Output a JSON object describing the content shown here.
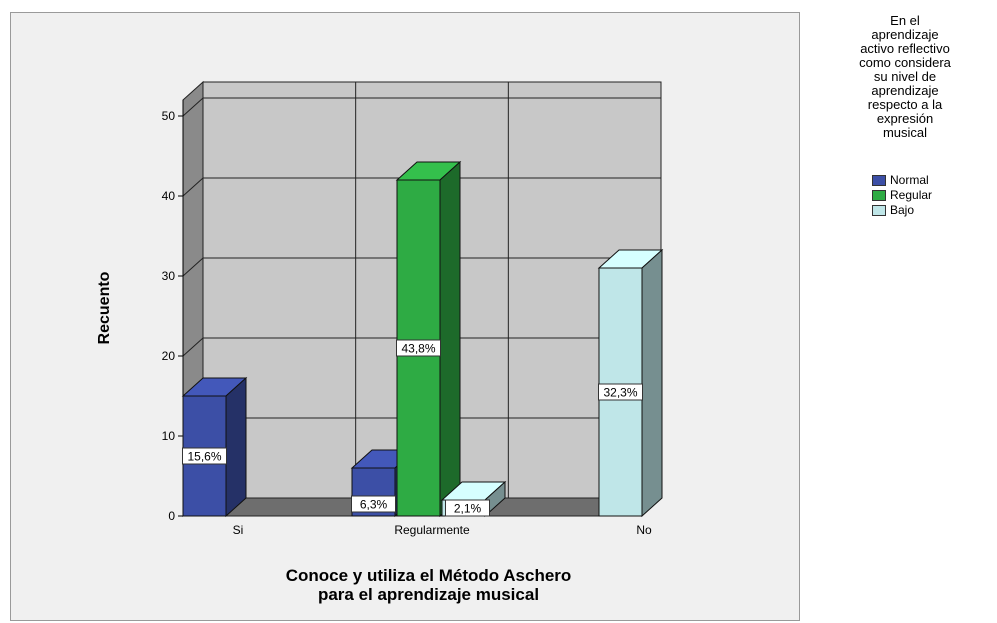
{
  "chart_data": {
    "type": "bar",
    "subtype": "3d-clustered",
    "categories": [
      "Si",
      "Regularmente",
      "No"
    ],
    "series": [
      {
        "name": "Normal",
        "values": [
          15,
          6,
          0
        ],
        "labels": [
          "15,6%",
          "6,3%",
          ""
        ],
        "color": "#3c4fa6"
      },
      {
        "name": "Regular",
        "values": [
          0,
          42,
          0
        ],
        "labels": [
          "",
          "43,8%",
          ""
        ],
        "color": "#2eab44"
      },
      {
        "name": "Bajo",
        "values": [
          0,
          2,
          31
        ],
        "labels": [
          "",
          "2,1%",
          "32,3%"
        ],
        "color": "#bfe6e8"
      }
    ],
    "xlabel": "Conoce y utiliza el Método Aschero\npara el aprendizaje musical",
    "ylabel": "Recuento",
    "yticks": [
      0,
      10,
      20,
      30,
      40,
      50
    ],
    "ylim": [
      0,
      52
    ],
    "grid": true,
    "legend": {
      "title": "En el\naprendizaje\nactivo reflectivo\ncomo considera\nsu nivel de\naprendizaje\nrespecto a la\nexpresión\nmusical",
      "position": "right"
    }
  }
}
